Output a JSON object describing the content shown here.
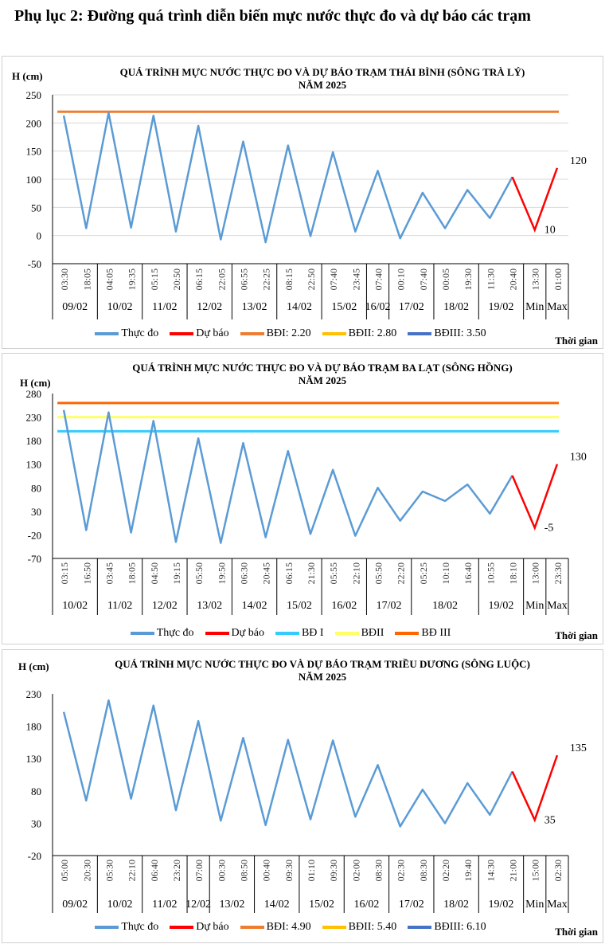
{
  "page_title": "Phụ lục 2: Đường quá trình diễn biến mực nước thực đo và dự báo các trạm",
  "chart_data": [
    {
      "type": "line",
      "title": [
        "QUÁ TRÌNH MỰC NƯỚC THỰC ĐO VÀ DỰ BÁO TRẠM THÁI BÌNH (SÔNG TRÀ LÝ)",
        "NĂM 2025"
      ],
      "ylabel": "H (cm)",
      "xlabel": "Thời gian",
      "ylim": [
        -50,
        250
      ],
      "yticks": [
        -50,
        0,
        50,
        100,
        150,
        200,
        250
      ],
      "grid": true,
      "legend_position": "bottom",
      "categories": [
        "03:30",
        "18:05",
        "04:05",
        "19:35",
        "05:15",
        "20:50",
        "06:15",
        "22:05",
        "06:55",
        "22:25",
        "08:15",
        "22:50",
        "07:40",
        "23:45",
        "07:40",
        "00:10",
        "07:40",
        "00:05",
        "19:30",
        "11:30",
        "20:40",
        "13:30",
        "01:00"
      ],
      "date_groups": [
        {
          "label": "09/02",
          "span": 2
        },
        {
          "label": "10/02",
          "span": 2
        },
        {
          "label": "11/02",
          "span": 2
        },
        {
          "label": "12/02",
          "span": 2
        },
        {
          "label": "13/02",
          "span": 2
        },
        {
          "label": "14/02",
          "span": 2
        },
        {
          "label": "15/02",
          "span": 2
        },
        {
          "label": "16/02",
          "span": 1
        },
        {
          "label": "17/02",
          "span": 2
        },
        {
          "label": "18/02",
          "span": 2
        },
        {
          "label": "19/02",
          "span": 2
        },
        {
          "label": "Min",
          "span": 1
        },
        {
          "label": "Max",
          "span": 1
        }
      ],
      "observed": {
        "name": "Thực đo",
        "color": "#5b9bd5",
        "values": [
          213,
          13,
          218,
          14,
          213,
          7,
          195,
          -7,
          167,
          -12,
          160,
          -1,
          148,
          7,
          115,
          -5,
          76,
          13,
          81,
          31,
          104
        ]
      },
      "forecast": {
        "name": "Dự báo",
        "color": "#ff0000",
        "start_index": 20,
        "values": [
          104,
          10,
          120
        ],
        "labels": [
          "",
          "10",
          "120"
        ]
      },
      "thresholds": [
        {
          "name": "BĐI: 2.20",
          "color": "#ed7d31",
          "value": 220
        },
        {
          "name": "BĐII: 2.80",
          "color": "#ffc000",
          "value": 280
        },
        {
          "name": "BĐIII: 3.50",
          "color": "#4472c4",
          "value": 350
        }
      ]
    },
    {
      "type": "line",
      "title": [
        "QUÁ TRÌNH MỰC NƯỚC THỰC ĐO VÀ DỰ BÁO TRẠM BA LẠT (SÔNG HỒNG)",
        "NĂM 2025"
      ],
      "ylabel": "H (cm)",
      "xlabel": "Thời gian",
      "ylim": [
        -70,
        280
      ],
      "yticks": [
        -70,
        -20,
        30,
        80,
        130,
        180,
        230,
        280
      ],
      "grid": false,
      "legend_position": "bottom",
      "categories": [
        "03:15",
        "16:50",
        "03:45",
        "18:05",
        "04:50",
        "19:15",
        "05:50",
        "19:50",
        "06:30",
        "20:45",
        "06:15",
        "21:30",
        "05:55",
        "22:10",
        "05:50",
        "22:20",
        "05:25",
        "10:10",
        "16:40",
        "10:55",
        "18:10",
        "13:00",
        "23:30"
      ],
      "date_groups": [
        {
          "label": "10/02",
          "span": 2
        },
        {
          "label": "11/02",
          "span": 2
        },
        {
          "label": "12/02",
          "span": 2
        },
        {
          "label": "13/02",
          "span": 2
        },
        {
          "label": "14/02",
          "span": 2
        },
        {
          "label": "15/02",
          "span": 2
        },
        {
          "label": "16/02",
          "span": 2
        },
        {
          "label": "17/02",
          "span": 2
        },
        {
          "label": "18/02",
          "span": 3
        },
        {
          "label": "19/02",
          "span": 2
        },
        {
          "label": "Min",
          "span": 1
        },
        {
          "label": "Max",
          "span": 1
        }
      ],
      "observed": {
        "name": "Thực đo",
        "color": "#5b9bd5",
        "values": [
          245,
          -10,
          240,
          -15,
          222,
          -35,
          185,
          -37,
          175,
          -25,
          158,
          -18,
          118,
          -22,
          80,
          10,
          72,
          52,
          87,
          25,
          106
        ]
      },
      "forecast": {
        "name": "Dự báo",
        "color": "#ff0000",
        "start_index": 20,
        "values": [
          106,
          -5,
          130
        ],
        "labels": [
          "",
          "-5",
          "130"
        ]
      },
      "thresholds": [
        {
          "name": "BĐ I",
          "color": "#33ccff",
          "value": 200
        },
        {
          "name": "BĐII",
          "color": "#ffff66",
          "value": 230
        },
        {
          "name": "BĐ III",
          "color": "#ff6600",
          "value": 260
        }
      ]
    },
    {
      "type": "line",
      "title": [
        "QUÁ TRÌNH MỰC NƯỚC THỰC ĐO VÀ DỰ BÁO TRẠM TRIỀU DƯƠNG (SÔNG LUỘC)",
        "NĂM 2025"
      ],
      "ylabel": "H (cm)",
      "xlabel": "Thời gian",
      "ylim": [
        -20,
        230
      ],
      "yticks": [
        -20,
        30,
        80,
        130,
        180,
        230
      ],
      "grid": false,
      "legend_position": "bottom",
      "categories": [
        "05:00",
        "20:30",
        "05:30",
        "22:10",
        "06:40",
        "23:20",
        "07:00",
        "00:30",
        "08:50",
        "00:40",
        "09:30",
        "01:10",
        "09:30",
        "02:00",
        "08:30",
        "02:30",
        "08:30",
        "02:20",
        "19:40",
        "14:30",
        "21:00",
        "15:00",
        "02:30"
      ],
      "date_groups": [
        {
          "label": "09/02",
          "span": 2
        },
        {
          "label": "10/02",
          "span": 2
        },
        {
          "label": "11/02",
          "span": 2
        },
        {
          "label": "12/02",
          "span": 1
        },
        {
          "label": "13/02",
          "span": 2
        },
        {
          "label": "14/02",
          "span": 2
        },
        {
          "label": "15/02",
          "span": 2
        },
        {
          "label": "16/02",
          "span": 2
        },
        {
          "label": "17/02",
          "span": 2
        },
        {
          "label": "18/02",
          "span": 2
        },
        {
          "label": "19/02",
          "span": 2
        },
        {
          "label": "Min",
          "span": 1
        },
        {
          "label": "Max",
          "span": 1
        }
      ],
      "observed": {
        "name": "Thực đo",
        "color": "#5b9bd5",
        "values": [
          202,
          65,
          220,
          68,
          212,
          50,
          188,
          34,
          162,
          27,
          159,
          36,
          158,
          40,
          120,
          25,
          82,
          30,
          92,
          43,
          110
        ]
      },
      "forecast": {
        "name": "Dự báo",
        "color": "#ff0000",
        "start_index": 20,
        "values": [
          110,
          35,
          135
        ],
        "labels": [
          "",
          "35",
          "135"
        ]
      },
      "thresholds": [
        {
          "name": "BĐI: 4.90",
          "color": "#ed7d31",
          "value": 490
        },
        {
          "name": "BĐII: 5.40",
          "color": "#ffc000",
          "value": 540
        },
        {
          "name": "BĐIII: 6.10",
          "color": "#4472c4",
          "value": 610
        }
      ]
    }
  ]
}
